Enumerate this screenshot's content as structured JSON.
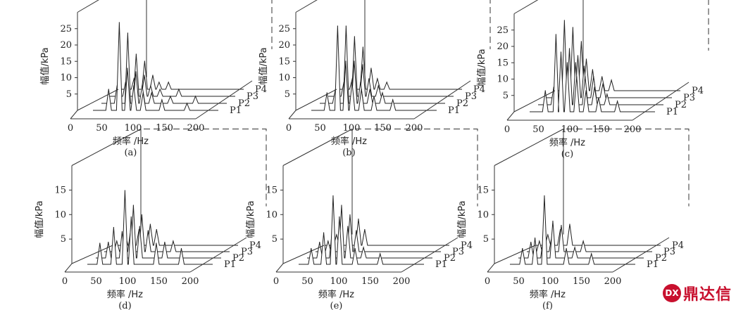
{
  "watermark": {
    "text": "鼎达信",
    "badge": "DX",
    "color": "#c8102e"
  },
  "chart_data": [
    {
      "type": "waterfall-line",
      "panel_label": "(a)",
      "xlabel": "频率 /Hz",
      "ylabel": "幅值/kPa",
      "xlim": [
        0,
        200
      ],
      "ylim": [
        0,
        30
      ],
      "x_ticks": [
        0,
        50,
        100,
        150,
        200
      ],
      "y_ticks": [
        5,
        10,
        15,
        20,
        25
      ],
      "series": [
        {
          "name": "P1",
          "peaks": [
            [
              25,
              6
            ],
            [
              42,
              25
            ],
            [
              55,
              12
            ],
            [
              65,
              7
            ],
            [
              80,
              5
            ],
            [
              110,
              3
            ],
            [
              150,
              2
            ]
          ]
        },
        {
          "name": "P2",
          "peaks": [
            [
              25,
              5
            ],
            [
              42,
              20
            ],
            [
              55,
              9
            ],
            [
              65,
              5
            ],
            [
              80,
              3
            ],
            [
              110,
              2
            ],
            [
              150,
              2
            ]
          ]
        },
        {
          "name": "P3",
          "peaks": [
            [
              25,
              4
            ],
            [
              42,
              12
            ],
            [
              55,
              6
            ],
            [
              65,
              3
            ],
            [
              80,
              2
            ],
            [
              110,
              2
            ]
          ]
        },
        {
          "name": "P4",
          "peaks": [
            [
              25,
              3
            ],
            [
              42,
              8
            ],
            [
              55,
              4
            ],
            [
              65,
              2
            ],
            [
              80,
              2
            ]
          ]
        }
      ]
    },
    {
      "type": "waterfall-line",
      "panel_label": "(b)",
      "xlabel": "频率 /Hz",
      "ylabel": "幅值/kPa",
      "xlim": [
        0,
        200
      ],
      "ylim": [
        0,
        30
      ],
      "x_ticks": [
        0,
        50,
        100,
        150,
        200
      ],
      "y_ticks": [
        5,
        10,
        15,
        20,
        25
      ],
      "series": [
        {
          "name": "P1",
          "peaks": [
            [
              25,
              5
            ],
            [
              42,
              24
            ],
            [
              55,
              14
            ],
            [
              65,
              8
            ],
            [
              80,
              6
            ],
            [
              100,
              4
            ],
            [
              130,
              3
            ]
          ]
        },
        {
          "name": "P2",
          "peaks": [
            [
              25,
              4
            ],
            [
              42,
              22
            ],
            [
              55,
              12
            ],
            [
              65,
              6
            ],
            [
              80,
              4
            ],
            [
              100,
              3
            ]
          ]
        },
        {
          "name": "P3",
          "peaks": [
            [
              25,
              4
            ],
            [
              42,
              17
            ],
            [
              55,
              9
            ],
            [
              65,
              5
            ],
            [
              80,
              3
            ]
          ]
        },
        {
          "name": "P4",
          "peaks": [
            [
              25,
              3
            ],
            [
              42,
              12
            ],
            [
              55,
              6
            ],
            [
              65,
              3
            ],
            [
              80,
              2
            ]
          ]
        }
      ]
    },
    {
      "type": "waterfall-line",
      "panel_label": "(c)",
      "xlabel": "频率 /Hz",
      "ylabel": "幅值/kPa",
      "xlim": [
        0,
        200
      ],
      "ylim": [
        0,
        30
      ],
      "x_ticks": [
        0,
        50,
        100,
        150,
        200
      ],
      "y_ticks": [
        5,
        10,
        15,
        20,
        25
      ],
      "series": [
        {
          "name": "P1",
          "peaks": [
            [
              25,
              6
            ],
            [
              42,
              22
            ],
            [
              50,
              17
            ],
            [
              60,
              14
            ],
            [
              75,
              10
            ],
            [
              90,
              6
            ],
            [
              110,
              4
            ],
            [
              140,
              3
            ]
          ]
        },
        {
          "name": "P2",
          "peaks": [
            [
              25,
              5
            ],
            [
              42,
              24
            ],
            [
              50,
              16
            ],
            [
              60,
              12
            ],
            [
              75,
              8
            ],
            [
              90,
              5
            ],
            [
              110,
              3
            ]
          ]
        },
        {
          "name": "P3",
          "peaks": [
            [
              25,
              4
            ],
            [
              42,
              20
            ],
            [
              50,
              12
            ],
            [
              60,
              9
            ],
            [
              75,
              6
            ],
            [
              90,
              4
            ]
          ]
        },
        {
          "name": "P4",
          "peaks": [
            [
              25,
              3
            ],
            [
              42,
              14
            ],
            [
              50,
              9
            ],
            [
              60,
              6
            ],
            [
              75,
              4
            ],
            [
              90,
              3
            ]
          ]
        }
      ]
    },
    {
      "type": "waterfall-line",
      "panel_label": "(d)",
      "xlabel": "频率 /Hz",
      "ylabel": "幅值/kPa",
      "xlim": [
        0,
        200
      ],
      "ylim": [
        0,
        20
      ],
      "x_ticks": [
        0,
        50,
        100,
        150,
        200
      ],
      "y_ticks": [
        5,
        10,
        15
      ],
      "series": [
        {
          "name": "P1",
          "peaks": [
            [
              20,
              4
            ],
            [
              42,
              7
            ],
            [
              60,
              14
            ],
            [
              70,
              9
            ],
            [
              110,
              4
            ],
            [
              150,
              3
            ]
          ]
        },
        {
          "name": "P2",
          "peaks": [
            [
              20,
              3
            ],
            [
              42,
              5
            ],
            [
              60,
              10
            ],
            [
              70,
              6
            ],
            [
              110,
              3
            ]
          ]
        },
        {
          "name": "P3",
          "peaks": [
            [
              20,
              2
            ],
            [
              42,
              4
            ],
            [
              60,
              7
            ],
            [
              70,
              4
            ],
            [
              110,
              2
            ]
          ]
        },
        {
          "name": "P4",
          "peaks": [
            [
              20,
              2
            ],
            [
              42,
              3
            ],
            [
              60,
              4
            ],
            [
              70,
              3
            ]
          ]
        }
      ]
    },
    {
      "type": "waterfall-line",
      "panel_label": "(e)",
      "xlabel": "频率 /Hz",
      "ylabel": "幅值/kPa",
      "xlim": [
        0,
        200
      ],
      "ylim": [
        0,
        20
      ],
      "x_ticks": [
        0,
        50,
        100,
        150,
        200
      ],
      "y_ticks": [
        5,
        10,
        15
      ],
      "series": [
        {
          "name": "P1",
          "peaks": [
            [
              20,
              3
            ],
            [
              40,
              6
            ],
            [
              55,
              13
            ],
            [
              65,
              9
            ],
            [
              90,
              3
            ],
            [
              130,
              2
            ]
          ]
        },
        {
          "name": "P2",
          "peaks": [
            [
              20,
              3
            ],
            [
              40,
              5
            ],
            [
              55,
              10
            ],
            [
              65,
              6
            ],
            [
              90,
              2
            ]
          ]
        },
        {
          "name": "P3",
          "peaks": [
            [
              20,
              2
            ],
            [
              40,
              4
            ],
            [
              55,
              7
            ],
            [
              65,
              4
            ]
          ]
        },
        {
          "name": "P4",
          "peaks": [
            [
              20,
              2
            ],
            [
              40,
              3
            ],
            [
              55,
              5
            ],
            [
              65,
              3
            ]
          ]
        }
      ]
    },
    {
      "type": "waterfall-line",
      "panel_label": "(f)",
      "xlabel": "频率 /Hz",
      "ylabel": "幅值/kPa",
      "xlim": [
        0,
        200
      ],
      "ylim": [
        0,
        20
      ],
      "x_ticks": [
        0,
        50,
        100,
        150,
        200
      ],
      "y_ticks": [
        5,
        10,
        15
      ],
      "series": [
        {
          "name": "P1",
          "peaks": [
            [
              20,
              3
            ],
            [
              40,
              5
            ],
            [
              55,
              13
            ],
            [
              90,
              3
            ],
            [
              130,
              2
            ]
          ]
        },
        {
          "name": "P2",
          "peaks": [
            [
              20,
              3
            ],
            [
              40,
              4
            ],
            [
              55,
              7
            ],
            [
              90,
              2
            ]
          ]
        },
        {
          "name": "P3",
          "peaks": [
            [
              20,
              2
            ],
            [
              40,
              3
            ],
            [
              55,
              5
            ],
            [
              90,
              2
            ]
          ]
        },
        {
          "name": "P4",
          "peaks": [
            [
              20,
              2
            ],
            [
              40,
              3
            ],
            [
              55,
              4
            ]
          ]
        }
      ]
    }
  ]
}
